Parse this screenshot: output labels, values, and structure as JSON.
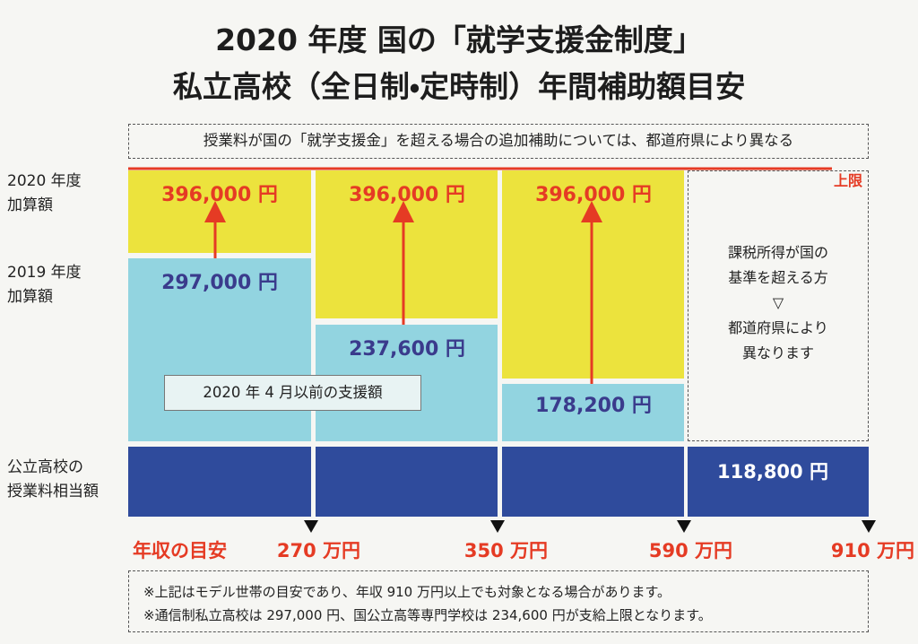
{
  "header": {
    "title_lines": [
      "2020 年度 国の「就学支援金制度」",
      "私立高校（全日制・定時制）年間補助額目安"
    ]
  },
  "note_top": "授業料が国の「就学支援金」を超える場合の追加補助については、都道府県により異なる",
  "cap_label": "上限",
  "row_labels": [
    [
      "2020 年度",
      "加算額"
    ],
    [
      "2019 年度",
      "加算額"
    ],
    [
      "公立高校の",
      "授業料相当額"
    ]
  ],
  "columns": [
    {
      "amount_2020": "396,000 円",
      "amount_2019": "297,000 円"
    },
    {
      "amount_2020": "396,000 円",
      "amount_2019": "237,600 円"
    },
    {
      "amount_2020": "396,000 円",
      "amount_2019": "178,200 円"
    }
  ],
  "pre_april_label": "2020 年 4 月以前の支援額",
  "over_standard_text": [
    "課税所得が国の",
    "基準を超える方",
    "▽",
    "都道府県により",
    "異なります"
  ],
  "public_amount": "118,800 円",
  "income_label": "年収の目安",
  "income_marks": [
    "270 万円",
    "350 万円",
    "590 万円",
    "910 万円"
  ],
  "footnotes": [
    "※上記はモデル世帯の目安であり、年収 910 万円以上でも対象となる場合があります。",
    "※通信制私立高校は 297,000 円、国公立高等専門学校は 234,600 円が支給上限となります。"
  ]
}
